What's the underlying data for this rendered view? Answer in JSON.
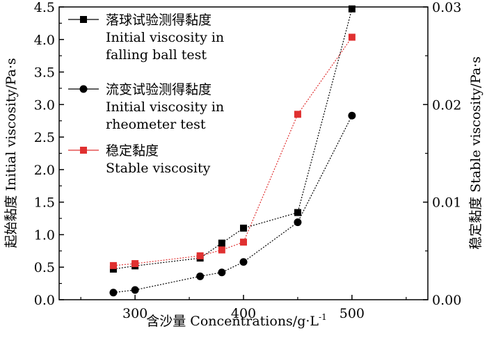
{
  "chart_data": {
    "type": "line",
    "x_label": "含沙量 Concentrations/g·L",
    "x_label_sup": "-1",
    "y_left_label": "起始黏度 Initial viscosity/Pa·s",
    "y_right_label": "稳定黏度 Stable viscosity/Pa·s",
    "x_range": [
      230,
      570
    ],
    "y_left_range": [
      0,
      4.5
    ],
    "y_right_range": [
      0,
      0.03
    ],
    "x_ticks": [
      300,
      400,
      500
    ],
    "x_tick_labels": [
      "300",
      "400",
      "500"
    ],
    "y_left_ticks": [
      0,
      0.5,
      1.0,
      1.5,
      2.0,
      2.5,
      3.0,
      3.5,
      4.0,
      4.5
    ],
    "y_left_tick_labels": [
      "0.0",
      "0.5",
      "1.0",
      "1.5",
      "2.0",
      "2.5",
      "3.0",
      "3.5",
      "4.0",
      "4.5"
    ],
    "y_right_ticks": [
      0,
      0.01,
      0.02,
      0.03
    ],
    "y_right_tick_labels": [
      "0.00",
      "0.01",
      "0.02",
      "0.03"
    ],
    "grid": false,
    "legend_position": "top-left",
    "series": [
      {
        "name_lines": [
          "落球试验测得黏度",
          "Initial viscosity in",
          "falling ball test"
        ],
        "axis": "left",
        "marker": "square",
        "color": "#000000",
        "x": [
          280,
          300,
          360,
          380,
          400,
          450,
          500
        ],
        "y": [
          0.47,
          0.52,
          0.64,
          0.87,
          1.1,
          1.34,
          4.47
        ]
      },
      {
        "name_lines": [
          "流变试验测得黏度",
          "Initial viscosity in",
          "rheometer test"
        ],
        "axis": "left",
        "marker": "circle",
        "color": "#000000",
        "x": [
          280,
          300,
          360,
          380,
          400,
          450,
          500
        ],
        "y": [
          0.11,
          0.15,
          0.36,
          0.42,
          0.58,
          1.19,
          2.83
        ]
      },
      {
        "name_lines": [
          "稳定黏度",
          "Stable viscosity"
        ],
        "axis": "right",
        "marker": "square",
        "color": "#e03030",
        "x": [
          280,
          300,
          360,
          380,
          400,
          450,
          500
        ],
        "y": [
          0.0035,
          0.0037,
          0.0045,
          0.0051,
          0.0059,
          0.019,
          0.0269
        ]
      }
    ]
  }
}
